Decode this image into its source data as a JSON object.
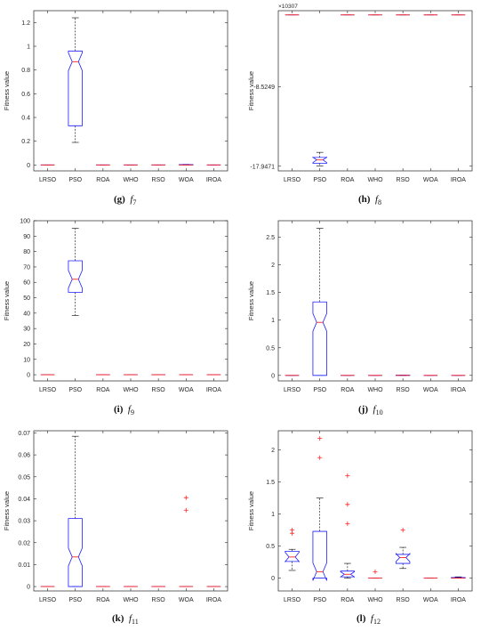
{
  "chart_data": [
    {
      "type": "box",
      "ylabel": "Fitness value",
      "ylim": [
        -0.05,
        1.3
      ],
      "yticks": [
        "0",
        "0.2",
        "0.4",
        "0.6",
        "0.8",
        "1",
        "1.2"
      ],
      "categories": [
        "LRSO",
        "PSO",
        "ROA",
        "WHO",
        "RSO",
        "WOA",
        "IROA"
      ],
      "caption": {
        "letter": "(g)",
        "func": "f",
        "sub": "7"
      },
      "boxes": [
        {
          "min": 0,
          "q1": 0,
          "median": 0,
          "q3": 0,
          "max": 0,
          "outliers": []
        },
        {
          "min": 0.19,
          "q1": 0.33,
          "median": 0.87,
          "q3": 0.96,
          "max": 1.24,
          "outliers": []
        },
        {
          "min": 0,
          "q1": 0,
          "median": 0,
          "q3": 0,
          "max": 0,
          "outliers": []
        },
        {
          "min": 0,
          "q1": 0,
          "median": 0,
          "q3": 0,
          "max": 0,
          "outliers": []
        },
        {
          "min": 0,
          "q1": 0,
          "median": 0,
          "q3": 0,
          "max": 0,
          "outliers": []
        },
        {
          "min": 0,
          "q1": 0,
          "median": 0,
          "q3": 0.003,
          "max": 0.005,
          "outliers": []
        },
        {
          "min": 0,
          "q1": 0,
          "median": 0,
          "q3": 0,
          "max": 0,
          "outliers": []
        }
      ]
    },
    {
      "type": "box",
      "ylabel": "Fitness value",
      "ylim": [
        -18.5,
        0.5
      ],
      "yticks": [
        "-8.5249",
        "-17.9471"
      ],
      "ytick_values": [
        -8.5249,
        -17.9471
      ],
      "exponent": "×10^307",
      "categories": [
        "LRSO",
        "PSO",
        "ROA",
        "WHO",
        "RSO",
        "WOA",
        "IROA"
      ],
      "caption": {
        "letter": "(h)",
        "func": "f",
        "sub": "8"
      },
      "boxes": [
        {
          "min": 0,
          "q1": 0,
          "median": 0,
          "q3": 0,
          "max": 0,
          "outliers": []
        },
        {
          "min": -17.9,
          "q1": -17.6,
          "median": -17.2,
          "q3": -16.9,
          "max": -16.3,
          "outliers": []
        },
        {
          "min": 0,
          "q1": 0,
          "median": 0,
          "q3": 0,
          "max": 0,
          "outliers": []
        },
        {
          "min": 0,
          "q1": 0,
          "median": 0,
          "q3": 0,
          "max": 0,
          "outliers": []
        },
        {
          "min": 0,
          "q1": 0,
          "median": 0,
          "q3": 0,
          "max": 0,
          "outliers": []
        },
        {
          "min": 0,
          "q1": 0,
          "median": 0,
          "q3": 0,
          "max": 0,
          "outliers": []
        },
        {
          "min": 0,
          "q1": 0,
          "median": 0,
          "q3": 0,
          "max": 0,
          "outliers": []
        }
      ]
    },
    {
      "type": "box",
      "ylabel": "Fitness value",
      "ylim": [
        -4,
        100
      ],
      "yticks": [
        "0",
        "10",
        "20",
        "30",
        "40",
        "50",
        "60",
        "70",
        "80",
        "90",
        "100"
      ],
      "categories": [
        "LRSO",
        "PSO",
        "ROA",
        "WHO",
        "RSO",
        "WOA",
        "IROA"
      ],
      "caption": {
        "letter": "(i)",
        "func": "f",
        "sub": "9"
      },
      "boxes": [
        {
          "min": 0,
          "q1": 0,
          "median": 0,
          "q3": 0,
          "max": 0,
          "outliers": []
        },
        {
          "min": 38.5,
          "q1": 53.5,
          "median": 62,
          "q3": 74,
          "max": 95,
          "outliers": []
        },
        {
          "min": 0,
          "q1": 0,
          "median": 0,
          "q3": 0,
          "max": 0,
          "outliers": []
        },
        {
          "min": 0,
          "q1": 0,
          "median": 0,
          "q3": 0,
          "max": 0,
          "outliers": []
        },
        {
          "min": 0,
          "q1": 0,
          "median": 0,
          "q3": 0,
          "max": 0,
          "outliers": []
        },
        {
          "min": 0,
          "q1": 0,
          "median": 0,
          "q3": 0,
          "max": 0,
          "outliers": []
        },
        {
          "min": 0,
          "q1": 0,
          "median": 0,
          "q3": 0,
          "max": 0,
          "outliers": []
        }
      ]
    },
    {
      "type": "box",
      "ylabel": "Fitness value",
      "ylim": [
        -0.1,
        2.8
      ],
      "yticks": [
        "0",
        "0.5",
        "1",
        "1.5",
        "2",
        "2.5"
      ],
      "categories": [
        "LRSO",
        "PSO",
        "ROA",
        "WHO",
        "RSO",
        "WOA",
        "IROA"
      ],
      "caption": {
        "letter": "(j)",
        "func": "f",
        "sub": "10"
      },
      "boxes": [
        {
          "min": 0,
          "q1": 0,
          "median": 0,
          "q3": 0,
          "max": 0,
          "outliers": []
        },
        {
          "min": 0,
          "q1": 0,
          "median": 0.96,
          "q3": 1.33,
          "max": 2.66,
          "outliers": []
        },
        {
          "min": 0,
          "q1": 0,
          "median": 0,
          "q3": 0,
          "max": 0,
          "outliers": []
        },
        {
          "min": 0,
          "q1": 0,
          "median": 0,
          "q3": 0,
          "max": 0,
          "outliers": []
        },
        {
          "min": 0,
          "q1": 0,
          "median": 0,
          "q3": 0.004,
          "max": 0.008,
          "outliers": []
        },
        {
          "min": 0,
          "q1": 0,
          "median": 0,
          "q3": 0,
          "max": 0,
          "outliers": []
        },
        {
          "min": 0,
          "q1": 0,
          "median": 0,
          "q3": 0,
          "max": 0,
          "outliers": []
        }
      ]
    },
    {
      "type": "box",
      "ylabel": "Fitness value",
      "ylim": [
        -0.002,
        0.071
      ],
      "yticks": [
        "0",
        "0.01",
        "0.02",
        "0.03",
        "0.04",
        "0.05",
        "0.06",
        "0.07"
      ],
      "categories": [
        "LRSO",
        "PSO",
        "ROA",
        "WHO",
        "RSO",
        "WOA",
        "IROA"
      ],
      "caption": {
        "letter": "(k)",
        "func": "f",
        "sub": "11"
      },
      "boxes": [
        {
          "min": 0,
          "q1": 0,
          "median": 0,
          "q3": 0,
          "max": 0,
          "outliers": []
        },
        {
          "min": 0,
          "q1": 0,
          "median": 0.0135,
          "q3": 0.031,
          "max": 0.0685,
          "outliers": []
        },
        {
          "min": 0,
          "q1": 0,
          "median": 0,
          "q3": 0,
          "max": 0,
          "outliers": []
        },
        {
          "min": 0,
          "q1": 0,
          "median": 0,
          "q3": 0,
          "max": 0,
          "outliers": []
        },
        {
          "min": 0,
          "q1": 0,
          "median": 0,
          "q3": 0,
          "max": 0,
          "outliers": []
        },
        {
          "min": 0,
          "q1": 0,
          "median": 0,
          "q3": 0,
          "max": 0,
          "outliers": [
            0.0405,
            0.0348
          ]
        },
        {
          "min": 0,
          "q1": 0,
          "median": 0,
          "q3": 0,
          "max": 0,
          "outliers": []
        }
      ]
    },
    {
      "type": "box",
      "ylabel": "Fitness value",
      "ylim": [
        -0.2,
        2.3
      ],
      "yticks": [
        "0",
        "0.5",
        "1",
        "1.5",
        "2"
      ],
      "categories": [
        "LRSO",
        "PSO",
        "ROA",
        "WHO",
        "RSO",
        "WOA",
        "IROA"
      ],
      "caption": {
        "letter": "(l)",
        "func": "f",
        "sub": "12"
      },
      "boxes": [
        {
          "min": 0.12,
          "q1": 0.26,
          "median": 0.33,
          "q3": 0.42,
          "max": 0.45,
          "outliers": [
            0.75,
            0.7
          ]
        },
        {
          "min": 0,
          "q1": 0,
          "median": 0.1,
          "q3": 0.73,
          "max": 1.25,
          "outliers": [
            2.18,
            1.88
          ]
        },
        {
          "min": 0,
          "q1": 0.02,
          "median": 0.06,
          "q3": 0.11,
          "max": 0.23,
          "outliers": [
            1.6,
            1.15,
            0.85
          ]
        },
        {
          "min": 0,
          "q1": 0,
          "median": 0,
          "q3": 0,
          "max": 0,
          "outliers": [
            0.1
          ]
        },
        {
          "min": 0.15,
          "q1": 0.23,
          "median": 0.32,
          "q3": 0.37,
          "max": 0.48,
          "outliers": [
            0.75
          ]
        },
        {
          "min": 0,
          "q1": 0,
          "median": 0,
          "q3": 0,
          "max": 0,
          "outliers": []
        },
        {
          "min": 0,
          "q1": 0,
          "median": 0,
          "q3": 0.01,
          "max": 0.02,
          "outliers": []
        }
      ]
    }
  ]
}
